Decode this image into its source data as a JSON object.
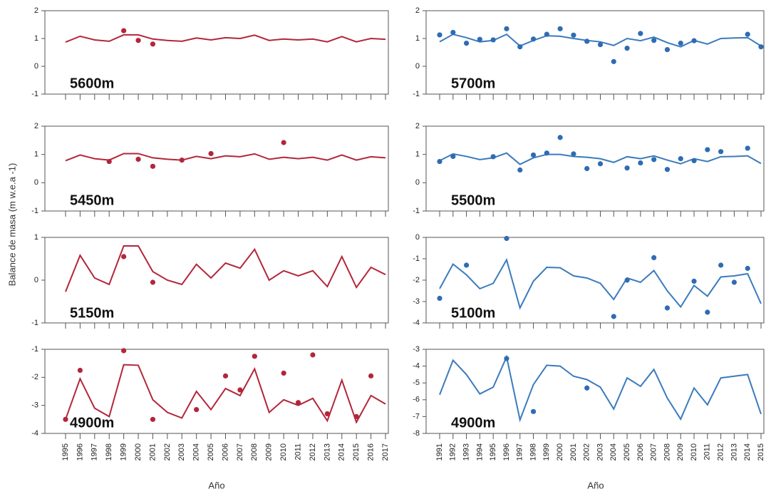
{
  "y_label": "Balance de masa (m w.e.a -1)",
  "x_labels": [
    "Año",
    "Año"
  ],
  "chart_data": [
    {
      "type": "line",
      "annotation": "5600m",
      "ylim": [
        -1,
        2
      ],
      "yticks": [
        -1,
        0,
        1,
        2
      ],
      "categories": [
        "1995",
        "1996",
        "1997",
        "1998",
        "1999",
        "2000",
        "2001",
        "2002",
        "2003",
        "2004",
        "2005",
        "2006",
        "2007",
        "2008",
        "2009",
        "2010",
        "2011",
        "2012",
        "2013",
        "2014",
        "2015",
        "2016",
        "2017"
      ],
      "series": [
        {
          "style": "line",
          "color": "#b3263a",
          "values": [
            0.87,
            1.08,
            0.95,
            0.9,
            1.13,
            1.13,
            0.98,
            0.93,
            0.9,
            1.02,
            0.95,
            1.03,
            1.0,
            1.12,
            0.93,
            0.98,
            0.95,
            0.98,
            0.88,
            1.07,
            0.88,
            1.0,
            0.97
          ]
        },
        {
          "style": "markers",
          "color": "#b3263a",
          "values": [
            null,
            null,
            null,
            null,
            1.28,
            0.93,
            0.8,
            null,
            null,
            null,
            null,
            null,
            null,
            null,
            null,
            null,
            null,
            null,
            null,
            null,
            null,
            null,
            null
          ]
        }
      ]
    },
    {
      "type": "line",
      "annotation": "5700m",
      "ylim": [
        -1,
        2
      ],
      "yticks": [
        -1,
        0,
        1,
        2
      ],
      "categories": [
        "1991",
        "1992",
        "1993",
        "1994",
        "1995",
        "1996",
        "1997",
        "1998",
        "1999",
        "2000",
        "2001",
        "2002",
        "2003",
        "2004",
        "2005",
        "2006",
        "2007",
        "2008",
        "2009",
        "2010",
        "2011",
        "2012",
        "2013",
        "2014",
        "2015"
      ],
      "series": [
        {
          "style": "line",
          "color": "#3b7bbd",
          "values": [
            0.88,
            1.15,
            1.03,
            0.88,
            0.93,
            1.15,
            0.73,
            0.93,
            1.1,
            1.08,
            1.0,
            0.93,
            0.88,
            0.75,
            1.0,
            0.92,
            1.05,
            0.85,
            0.7,
            0.93,
            0.8,
            1.0,
            1.02,
            1.03,
            0.73
          ]
        },
        {
          "style": "markers",
          "color": "#2e6cb3",
          "values": [
            1.13,
            1.22,
            0.83,
            0.97,
            0.95,
            1.35,
            0.7,
            0.98,
            1.15,
            1.35,
            1.12,
            0.9,
            0.78,
            0.17,
            0.65,
            1.18,
            0.93,
            0.6,
            0.83,
            0.92,
            null,
            null,
            null,
            1.15,
            0.7
          ]
        }
      ]
    },
    {
      "type": "line",
      "annotation": "5450m",
      "ylim": [
        -1,
        2
      ],
      "yticks": [
        -1,
        0,
        1,
        2
      ],
      "categories": [
        "1995",
        "1996",
        "1997",
        "1998",
        "1999",
        "2000",
        "2001",
        "2002",
        "2003",
        "2004",
        "2005",
        "2006",
        "2007",
        "2008",
        "2009",
        "2010",
        "2011",
        "2012",
        "2013",
        "2014",
        "2015",
        "2016",
        "2017"
      ],
      "series": [
        {
          "style": "line",
          "color": "#b3263a",
          "values": [
            0.78,
            0.98,
            0.85,
            0.8,
            1.03,
            1.03,
            0.88,
            0.83,
            0.8,
            0.93,
            0.85,
            0.95,
            0.92,
            1.02,
            0.83,
            0.9,
            0.85,
            0.9,
            0.8,
            0.98,
            0.8,
            0.92,
            0.88
          ]
        },
        {
          "style": "markers",
          "color": "#b3263a",
          "values": [
            null,
            null,
            null,
            0.75,
            null,
            0.83,
            0.58,
            null,
            0.8,
            null,
            1.03,
            null,
            null,
            null,
            null,
            1.42,
            null,
            null,
            null,
            null,
            null,
            null,
            null
          ]
        }
      ]
    },
    {
      "type": "line",
      "annotation": "5500m",
      "ylim": [
        -1,
        2
      ],
      "yticks": [
        -1,
        0,
        1,
        2
      ],
      "categories": [
        "1991",
        "1992",
        "1993",
        "1994",
        "1995",
        "1996",
        "1997",
        "1998",
        "1999",
        "2000",
        "2001",
        "2002",
        "2003",
        "2004",
        "2005",
        "2006",
        "2007",
        "2008",
        "2009",
        "2010",
        "2011",
        "2012",
        "2013",
        "2014",
        "2015"
      ],
      "series": [
        {
          "style": "line",
          "color": "#3b7bbd",
          "values": [
            0.78,
            1.02,
            0.93,
            0.82,
            0.88,
            1.05,
            0.65,
            0.88,
            1.0,
            1.0,
            0.93,
            0.9,
            0.85,
            0.72,
            0.92,
            0.85,
            0.95,
            0.8,
            0.67,
            0.85,
            0.75,
            0.92,
            0.93,
            0.95,
            0.68
          ]
        },
        {
          "style": "markers",
          "color": "#2e6cb3",
          "values": [
            0.75,
            0.93,
            null,
            null,
            0.92,
            null,
            0.45,
            0.98,
            1.05,
            1.6,
            1.02,
            0.5,
            0.67,
            null,
            0.52,
            0.7,
            0.82,
            0.47,
            0.85,
            0.78,
            1.17,
            1.1,
            null,
            1.22,
            null
          ]
        }
      ]
    },
    {
      "type": "line",
      "annotation": "5150m",
      "ylim": [
        -1,
        1
      ],
      "yticks": [
        -1,
        0,
        1
      ],
      "categories": [
        "1995",
        "1996",
        "1997",
        "1998",
        "1999",
        "2000",
        "2001",
        "2002",
        "2003",
        "2004",
        "2005",
        "2006",
        "2007",
        "2008",
        "2009",
        "2010",
        "2011",
        "2012",
        "2013",
        "2014",
        "2015",
        "2016",
        "2017"
      ],
      "series": [
        {
          "style": "line",
          "color": "#b3263a",
          "values": [
            -0.27,
            0.58,
            0.05,
            -0.1,
            0.8,
            0.8,
            0.2,
            0,
            -0.1,
            0.37,
            0.05,
            0.4,
            0.28,
            0.72,
            0,
            0.22,
            0.1,
            0.22,
            -0.15,
            0.55,
            -0.17,
            0.3,
            0.13
          ]
        },
        {
          "style": "markers",
          "color": "#b3263a",
          "values": [
            null,
            null,
            null,
            null,
            0.55,
            null,
            -0.05,
            null,
            null,
            null,
            null,
            null,
            null,
            null,
            null,
            null,
            null,
            null,
            null,
            null,
            null,
            null,
            null
          ]
        }
      ]
    },
    {
      "type": "line",
      "annotation": "5100m",
      "ylim": [
        -4,
        0
      ],
      "yticks": [
        -4,
        -3,
        -2,
        -1,
        0
      ],
      "categories": [
        "1991",
        "1992",
        "1993",
        "1994",
        "1995",
        "1996",
        "1997",
        "1998",
        "1999",
        "2000",
        "2001",
        "2002",
        "2003",
        "2004",
        "2005",
        "2006",
        "2007",
        "2008",
        "2009",
        "2010",
        "2011",
        "2012",
        "2013",
        "2014",
        "2015"
      ],
      "series": [
        {
          "style": "line",
          "color": "#3b7bbd",
          "values": [
            -2.4,
            -1.25,
            -1.75,
            -2.4,
            -2.15,
            -1.05,
            -3.3,
            -2.05,
            -1.4,
            -1.42,
            -1.8,
            -1.9,
            -2.15,
            -2.9,
            -1.9,
            -2.1,
            -1.55,
            -2.5,
            -3.25,
            -2.25,
            -2.75,
            -1.85,
            -1.8,
            -1.7,
            -3.1
          ]
        },
        {
          "style": "markers",
          "color": "#2e6cb3",
          "values": [
            -2.85,
            null,
            -1.3,
            null,
            null,
            -0.05,
            null,
            null,
            null,
            null,
            null,
            null,
            null,
            -3.7,
            -2.0,
            null,
            -0.95,
            -3.3,
            null,
            -2.05,
            -3.5,
            -1.3,
            -2.1,
            -1.45,
            null
          ]
        }
      ]
    },
    {
      "type": "line",
      "annotation": "4900m",
      "ylim": [
        -4,
        -1
      ],
      "yticks": [
        -4,
        -3,
        -2,
        -1
      ],
      "xlabels": true,
      "categories": [
        "1995",
        "1996",
        "1997",
        "1998",
        "1999",
        "2000",
        "2001",
        "2002",
        "2003",
        "2004",
        "2005",
        "2006",
        "2007",
        "2008",
        "2009",
        "2010",
        "2011",
        "2012",
        "2013",
        "2014",
        "2015",
        "2016",
        "2017"
      ],
      "series": [
        {
          "style": "line",
          "color": "#b3263a",
          "values": [
            -3.5,
            -2.05,
            -3.1,
            -3.4,
            -1.55,
            -1.57,
            -2.8,
            -3.25,
            -3.45,
            -2.5,
            -3.15,
            -2.4,
            -2.65,
            -1.7,
            -3.25,
            -2.8,
            -3.0,
            -2.75,
            -3.55,
            -2.1,
            -3.6,
            -2.65,
            -2.95
          ]
        },
        {
          "style": "markers",
          "color": "#b3263a",
          "values": [
            -3.5,
            -1.75,
            null,
            null,
            -1.05,
            null,
            -3.5,
            null,
            null,
            -3.15,
            null,
            -1.95,
            -2.45,
            -1.25,
            null,
            -1.85,
            -2.9,
            -1.2,
            -3.3,
            null,
            -3.4,
            -1.95,
            null
          ]
        }
      ]
    },
    {
      "type": "line",
      "annotation": "4900m",
      "ylim": [
        -8,
        -3
      ],
      "yticks": [
        -8,
        -7,
        -6,
        -5,
        -4,
        -3
      ],
      "xlabels": true,
      "categories": [
        "1991",
        "1992",
        "1993",
        "1994",
        "1995",
        "1996",
        "1997",
        "1998",
        "1999",
        "2000",
        "2001",
        "2002",
        "2003",
        "2004",
        "2005",
        "2006",
        "2007",
        "2008",
        "2009",
        "2010",
        "2011",
        "2012",
        "2013",
        "2014",
        "2015"
      ],
      "series": [
        {
          "style": "line",
          "color": "#3b7bbd",
          "values": [
            -5.7,
            -3.65,
            -4.5,
            -5.65,
            -5.25,
            -3.45,
            -7.2,
            -5.1,
            -3.95,
            -4.0,
            -4.6,
            -4.8,
            -5.25,
            -6.55,
            -4.7,
            -5.2,
            -4.2,
            -5.9,
            -7.15,
            -5.3,
            -6.3,
            -4.7,
            -4.6,
            -4.5,
            -6.85
          ]
        },
        {
          "style": "markers",
          "color": "#2e6cb3",
          "values": [
            null,
            null,
            null,
            null,
            null,
            -3.55,
            null,
            -6.7,
            null,
            null,
            null,
            -5.3,
            null,
            null,
            null,
            null,
            null,
            null,
            null,
            null,
            null,
            null,
            null,
            null,
            null
          ]
        }
      ]
    }
  ]
}
